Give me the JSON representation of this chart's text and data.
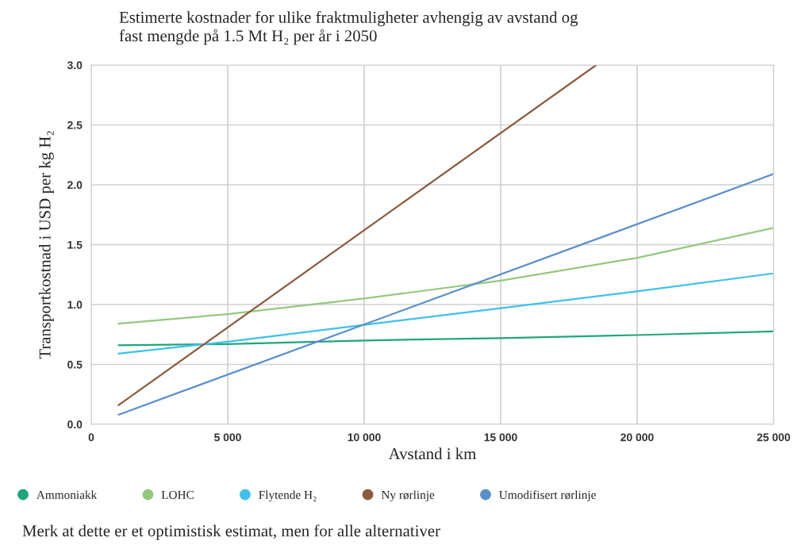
{
  "chart_data": {
    "type": "line",
    "title": "Estimerte kostnader for ulike fraktmuligheter avhengig av avstand og\nfast mengde på 1.5 Mt H₂ per år i 2050",
    "xlabel": "Avstand i km",
    "ylabel": "Transportkostnad i USD per kg H₂",
    "series": [
      {
        "name": "Ammoniakk",
        "color": "#20a57c",
        "x": [
          1000,
          5000,
          10000,
          15000,
          20000,
          25000
        ],
        "values": [
          0.66,
          0.67,
          0.7,
          0.72,
          0.745,
          0.775
        ]
      },
      {
        "name": "LOHC",
        "color": "#93c97f",
        "x": [
          1000,
          5000,
          10000,
          15000,
          20000,
          25000
        ],
        "values": [
          0.84,
          0.92,
          1.05,
          1.2,
          1.39,
          1.64
        ]
      },
      {
        "name": "Flytende H₂",
        "color": "#3fc0ee",
        "x": [
          1000,
          5000,
          10000,
          15000,
          20000,
          25000
        ],
        "values": [
          0.59,
          0.69,
          0.83,
          0.97,
          1.11,
          1.26
        ]
      },
      {
        "name": "Ny rørlinje",
        "color": "#8a5b3e",
        "x": [
          1000,
          18500
        ],
        "values": [
          0.16,
          3.0
        ]
      },
      {
        "name": "Umodifisert rørlinje",
        "color": "#5b8fca",
        "x": [
          1000,
          25000
        ],
        "values": [
          0.08,
          2.09
        ]
      }
    ],
    "xlim": [
      0,
      25000
    ],
    "xticks": [
      0,
      {
        "value": 5000,
        "label": "5 000"
      },
      {
        "value": 10000,
        "label": "10 000"
      },
      {
        "value": 15000,
        "label": "15 000"
      },
      {
        "value": 20000,
        "label": "20 000"
      },
      {
        "value": 25000,
        "label": "25 000"
      }
    ],
    "ylim": [
      0,
      3.0
    ],
    "yticks": [
      {
        "value": 0,
        "label": "0.0"
      },
      0.5,
      {
        "value": 1,
        "label": "1.0"
      },
      1.5,
      {
        "value": 2,
        "label": "2.0"
      },
      2.5,
      {
        "value": 3,
        "label": "3.0"
      }
    ],
    "grid": true,
    "legend": "bottom",
    "line_style": "solid",
    "annotations": [
      "Merk at dette er et optimistisk estimat, men for alle alternativer"
    ]
  }
}
